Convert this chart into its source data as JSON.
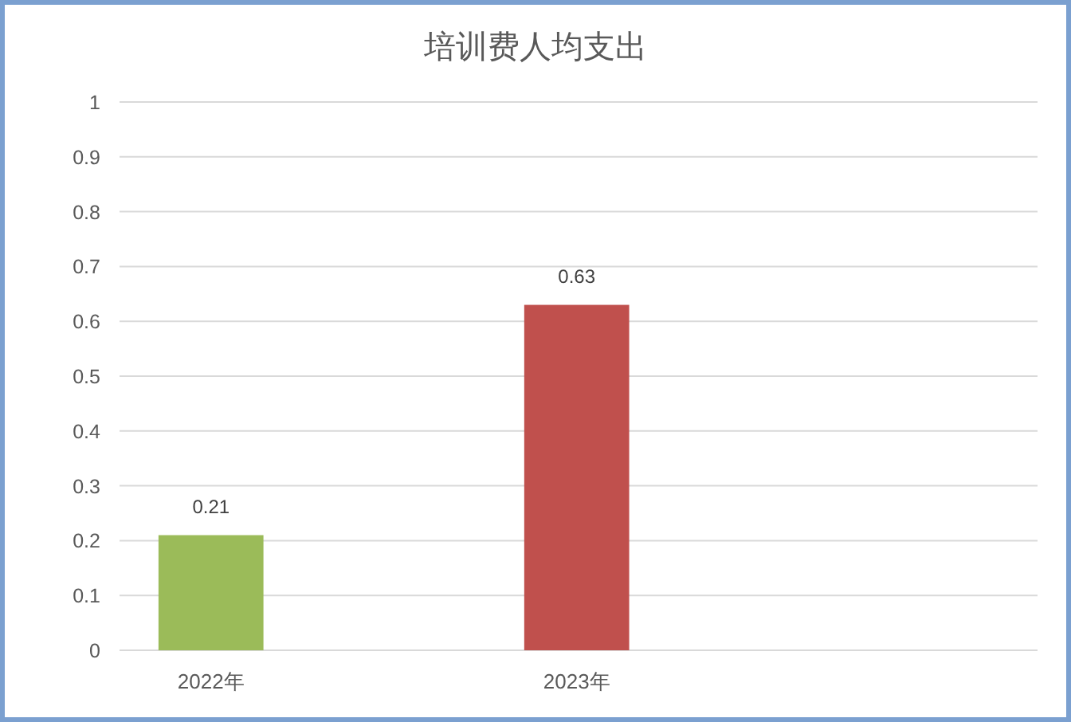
{
  "chart_data": {
    "type": "bar",
    "title": "培训费人均支出",
    "categories": [
      "2022年",
      "2023年"
    ],
    "values": [
      0.21,
      0.63
    ],
    "colors": [
      "#9bbb59",
      "#c0504d"
    ],
    "ylim": [
      0,
      1
    ],
    "yticks": [
      0,
      0.1,
      0.2,
      0.3,
      0.4,
      0.5,
      0.6,
      0.7,
      0.8,
      0.9,
      1
    ],
    "grid": "y",
    "data_labels": true
  }
}
